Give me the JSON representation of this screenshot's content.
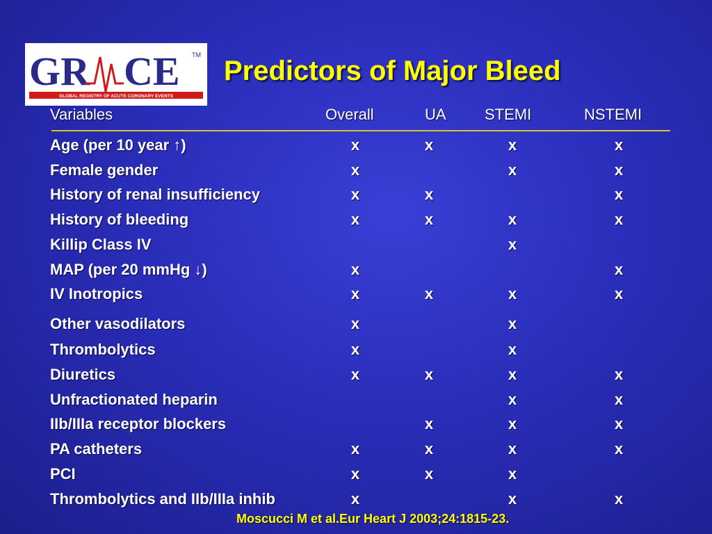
{
  "slide": {
    "title": "Predictors of Major Bleed",
    "logo": {
      "wordmark": "GR",
      "wordmark_b": "CE",
      "tagline": "GLOBAL REGISTRY OF ACUTE CORONARY EVENTS",
      "tm": "TM",
      "colors": {
        "text": "#2a2a8a",
        "pulse": "#d11a1a",
        "band": "#d11a1a"
      }
    },
    "columns": [
      "Variables",
      "Overall",
      "UA",
      "STEMI",
      "NSTEMI"
    ],
    "rows": [
      {
        "label": "Age (per 10 year ↑)",
        "overall": "x",
        "ua": "x",
        "stemi": "x",
        "nstemi": "x"
      },
      {
        "label": "Female gender",
        "overall": "x",
        "ua": "",
        "stemi": "x",
        "nstemi": "x"
      },
      {
        "label": "History of renal insufficiency",
        "overall": "x",
        "ua": "x",
        "stemi": "",
        "nstemi": "x"
      },
      {
        "label": "History of bleeding",
        "overall": "x",
        "ua": "x",
        "stemi": "x",
        "nstemi": "x"
      },
      {
        "label": "Killip Class IV",
        "overall": "",
        "ua": "",
        "stemi": "x",
        "nstemi": ""
      },
      {
        "label": "MAP (per 20 mmHg ↓)",
        "overall": "x",
        "ua": "",
        "stemi": "",
        "nstemi": "x"
      },
      {
        "label": "IV Inotropics",
        "overall": "x",
        "ua": "x",
        "stemi": "x",
        "nstemi": "x"
      },
      {
        "label": "Other vasodilators",
        "overall": "x",
        "ua": "",
        "stemi": "x",
        "nstemi": ""
      },
      {
        "label": "Thrombolytics",
        "overall": "x",
        "ua": "",
        "stemi": "x",
        "nstemi": ""
      },
      {
        "label": "Diuretics",
        "overall": "x",
        "ua": "x",
        "stemi": "x",
        "nstemi": "x"
      },
      {
        "label": "Unfractionated heparin",
        "overall": "",
        "ua": "",
        "stemi": "x",
        "nstemi": "x"
      },
      {
        "label": "IIb/IIIa receptor blockers",
        "overall": "",
        "ua": "x",
        "stemi": "x",
        "nstemi": "x"
      },
      {
        "label": "PA catheters",
        "overall": "x",
        "ua": "x",
        "stemi": "x",
        "nstemi": "x"
      },
      {
        "label": "PCI",
        "overall": "x",
        "ua": "x",
        "stemi": "x",
        "nstemi": ""
      },
      {
        "label": "Thrombolytics and IIb/IIIa inhib",
        "overall": "x",
        "ua": "",
        "stemi": "x",
        "nstemi": "x"
      }
    ],
    "citation": "Moscucci M  et al.Eur Heart J 2003;24:1815-23.",
    "colors": {
      "background": "#2a2db8",
      "title": "#ffff00",
      "rule": "#d9c23a",
      "text": "#ffffff"
    }
  }
}
